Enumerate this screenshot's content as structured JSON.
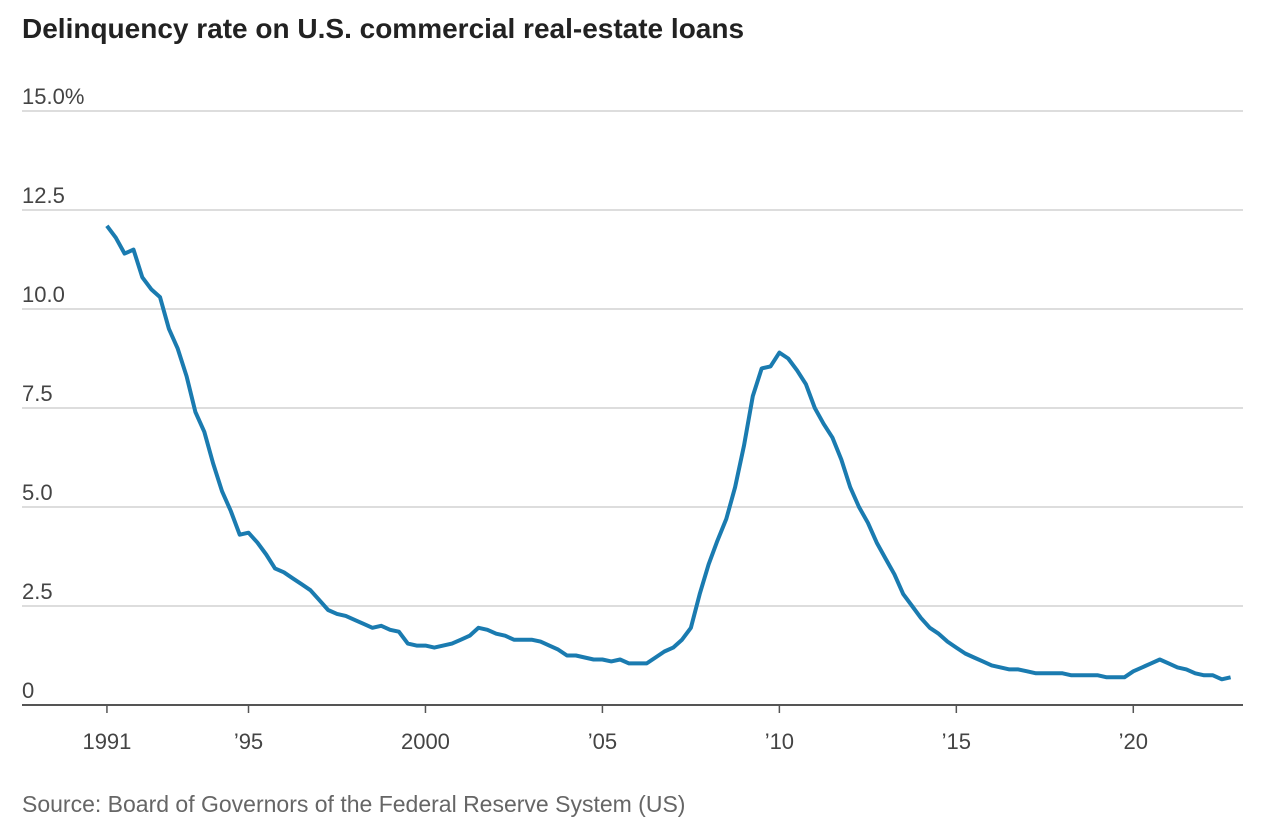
{
  "chart_data": {
    "type": "line",
    "title": "Delinquency rate on U.S. commercial real-estate loans",
    "source": "Source: Board of Governors of the Federal Reserve System (US)",
    "x": [
      1991,
      1991.25,
      1991.5,
      1991.75,
      1992,
      1992.25,
      1992.5,
      1992.75,
      1993,
      1993.25,
      1993.5,
      1993.75,
      1994,
      1994.25,
      1994.5,
      1994.75,
      1995,
      1995.25,
      1995.5,
      1995.75,
      1996,
      1996.25,
      1996.5,
      1996.75,
      1997,
      1997.25,
      1997.5,
      1997.75,
      1998,
      1998.25,
      1998.5,
      1998.75,
      1999,
      1999.25,
      1999.5,
      1999.75,
      2000,
      2000.25,
      2000.5,
      2000.75,
      2001,
      2001.25,
      2001.5,
      2001.75,
      2002,
      2002.25,
      2002.5,
      2002.75,
      2003,
      2003.25,
      2003.5,
      2003.75,
      2004,
      2004.25,
      2004.5,
      2004.75,
      2005,
      2005.25,
      2005.5,
      2005.75,
      2006,
      2006.25,
      2006.5,
      2006.75,
      2007,
      2007.25,
      2007.5,
      2007.75,
      2008,
      2008.25,
      2008.5,
      2008.75,
      2009,
      2009.25,
      2009.5,
      2009.75,
      2010,
      2010.25,
      2010.5,
      2010.75,
      2011,
      2011.25,
      2011.5,
      2011.75,
      2012,
      2012.25,
      2012.5,
      2012.75,
      2013,
      2013.25,
      2013.5,
      2013.75,
      2014,
      2014.25,
      2014.5,
      2014.75,
      2015,
      2015.25,
      2015.5,
      2015.75,
      2016,
      2016.25,
      2016.5,
      2016.75,
      2017,
      2017.25,
      2017.5,
      2017.75,
      2018,
      2018.25,
      2018.5,
      2018.75,
      2019,
      2019.25,
      2019.5,
      2019.75,
      2020,
      2020.25,
      2020.5,
      2020.75,
      2021,
      2021.25,
      2021.5,
      2021.75,
      2022,
      2022.25,
      2022.5,
      2022.75
    ],
    "series": [
      {
        "color": "#1a7bb0",
        "values": [
          12.1,
          11.8,
          11.4,
          11.5,
          10.8,
          10.5,
          10.3,
          9.5,
          9.0,
          8.3,
          7.4,
          6.9,
          6.1,
          5.4,
          4.9,
          4.3,
          4.35,
          4.1,
          3.8,
          3.45,
          3.35,
          3.2,
          3.05,
          2.9,
          2.65,
          2.4,
          2.3,
          2.25,
          2.15,
          2.05,
          1.95,
          2.0,
          1.9,
          1.85,
          1.55,
          1.5,
          1.5,
          1.45,
          1.5,
          1.55,
          1.65,
          1.75,
          1.95,
          1.9,
          1.8,
          1.75,
          1.65,
          1.65,
          1.65,
          1.6,
          1.5,
          1.4,
          1.25,
          1.25,
          1.2,
          1.15,
          1.15,
          1.1,
          1.15,
          1.05,
          1.05,
          1.05,
          1.2,
          1.35,
          1.45,
          1.65,
          1.95,
          2.8,
          3.55,
          4.15,
          4.7,
          5.5,
          6.55,
          7.8,
          8.5,
          8.55,
          8.9,
          8.75,
          8.45,
          8.1,
          7.5,
          7.1,
          6.75,
          6.2,
          5.5,
          5.0,
          4.6,
          4.1,
          3.7,
          3.3,
          2.8,
          2.5,
          2.2,
          1.95,
          1.8,
          1.6,
          1.45,
          1.3,
          1.2,
          1.1,
          1.0,
          0.95,
          0.9,
          0.9,
          0.85,
          0.8,
          0.8,
          0.8,
          0.8,
          0.75,
          0.75,
          0.75,
          0.75,
          0.7,
          0.7,
          0.7,
          0.85,
          0.95,
          1.05,
          1.15,
          1.05,
          0.95,
          0.9,
          0.8,
          0.75,
          0.75,
          0.65,
          0.7
        ]
      }
    ],
    "xlim": [
      1988.6,
      2023.1
    ],
    "xticks": [
      1991,
      {
        "value": 1995,
        "label": "’95"
      },
      2000,
      {
        "value": 2005,
        "label": "’05"
      },
      {
        "value": 2010,
        "label": "’10"
      },
      {
        "value": 2015,
        "label": "’15"
      },
      {
        "value": 2020,
        "label": "’20"
      }
    ],
    "ylim": [
      0,
      15
    ],
    "yticks": [
      0,
      2.5,
      {
        "value": 5,
        "label": "5.0"
      },
      7.5,
      {
        "value": 10,
        "label": "10.0"
      },
      12.5,
      {
        "value": 15,
        "label": "15.0%"
      }
    ],
    "grid": true
  }
}
